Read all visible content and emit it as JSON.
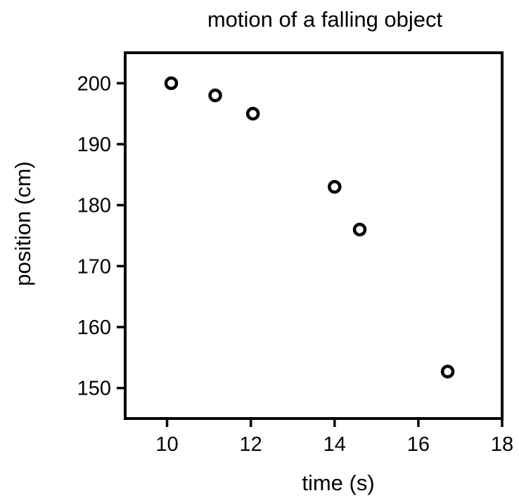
{
  "chart_data": {
    "type": "scatter",
    "title": "motion of a falling object",
    "xlabel": "time (s)",
    "ylabel": "position (cm)",
    "xlim": [
      9,
      18
    ],
    "ylim": [
      145,
      205
    ],
    "xticks": [
      10,
      12,
      14,
      16,
      18
    ],
    "yticks": [
      150,
      160,
      170,
      180,
      190,
      200
    ],
    "grid": false,
    "legend": "none",
    "marker": "open-circle",
    "colors": {
      "marker_stroke": "#000000",
      "marker_fill": "#ffffff",
      "axis": "#000000"
    },
    "series": [
      {
        "x": [
          10.1,
          11.15,
          12.05,
          14.0,
          14.6,
          16.7
        ],
        "y": [
          200,
          198,
          195,
          183,
          176,
          152.7
        ]
      }
    ]
  }
}
